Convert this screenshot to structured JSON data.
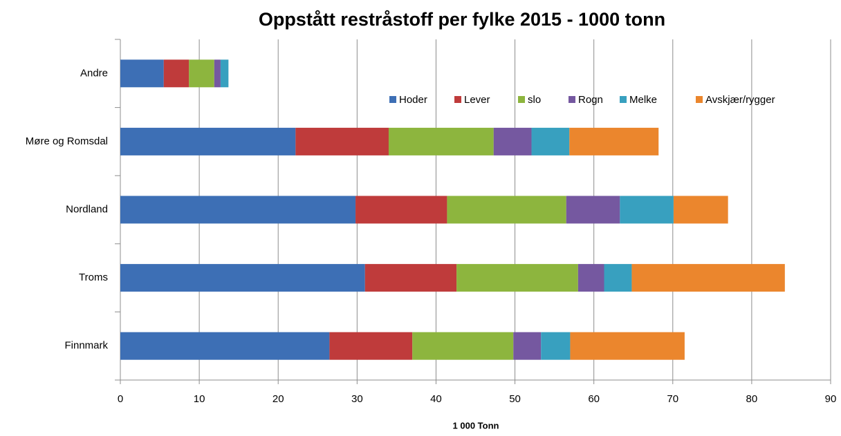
{
  "chart_data": {
    "type": "bar",
    "orientation": "horizontal",
    "stacked": true,
    "title": "Oppstått restråstoff per fylke 2015 - 1000 tonn",
    "xlabel": "1 000 Tonn",
    "categories": [
      "Andre",
      "Møre og Romsdal",
      "Nordland",
      "Troms",
      "Finnmark"
    ],
    "series": [
      {
        "name": "Hoder",
        "color": "#3d6fb5",
        "values": [
          5.5,
          22.2,
          29.8,
          31.0,
          26.5
        ]
      },
      {
        "name": "Lever",
        "color": "#bf3b3b",
        "values": [
          3.2,
          11.8,
          11.6,
          11.6,
          10.5
        ]
      },
      {
        "name": "slo",
        "color": "#8db53e",
        "values": [
          3.2,
          13.3,
          15.1,
          15.4,
          12.8
        ]
      },
      {
        "name": "Rogn",
        "color": "#7558a0",
        "values": [
          0.8,
          4.8,
          6.8,
          3.3,
          3.5
        ]
      },
      {
        "name": "Melke",
        "color": "#38a0bf",
        "values": [
          1.0,
          4.8,
          6.8,
          3.5,
          3.7
        ]
      },
      {
        "name": "Avskjær/rygger",
        "color": "#eb862d",
        "values": [
          0,
          11.3,
          6.9,
          19.4,
          14.5
        ]
      }
    ],
    "xlim": [
      0,
      90
    ],
    "xticks": [
      0,
      10,
      20,
      30,
      40,
      50,
      60,
      70,
      80,
      90
    ],
    "grid": true,
    "legend": "top"
  }
}
